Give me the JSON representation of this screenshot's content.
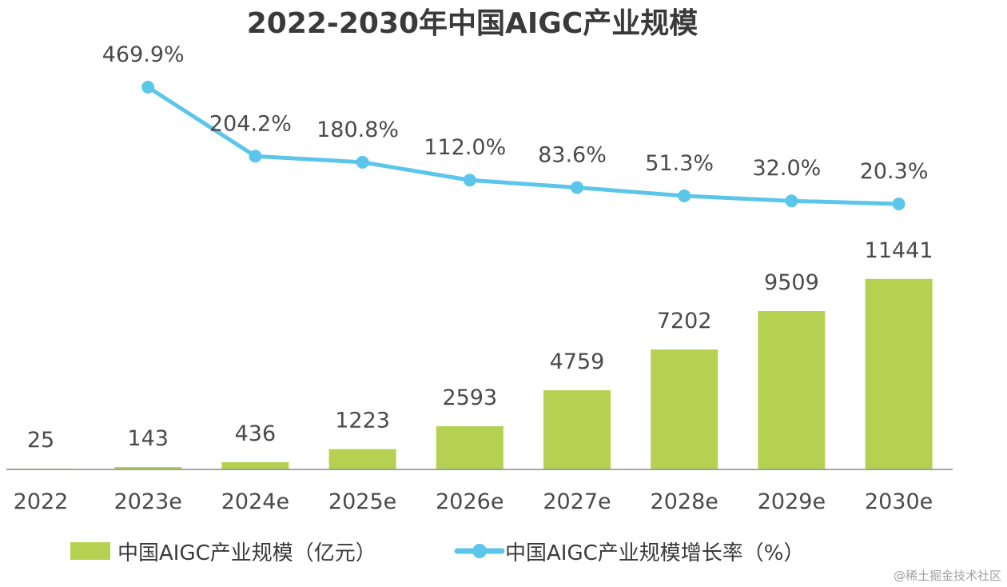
{
  "chart_data": {
    "type": "bar",
    "title": "2022-2030年中国AIGC产业规模",
    "categories": [
      "2022",
      "2023e",
      "2024e",
      "2025e",
      "2026e",
      "2027e",
      "2028e",
      "2029e",
      "2030e"
    ],
    "series": [
      {
        "name": "中国AIGC产业规模（亿元）",
        "kind": "bar",
        "values": [
          25,
          143,
          436,
          1223,
          2593,
          4759,
          7202,
          9509,
          11441
        ],
        "labels": [
          "25",
          "143",
          "436",
          "1223",
          "2593",
          "4759",
          "7202",
          "9509",
          "11441"
        ],
        "color": "#b6d152"
      },
      {
        "name": "中国AIGC产业规模增长率（%）",
        "kind": "line",
        "x": [
          "2023e",
          "2024e",
          "2025e",
          "2026e",
          "2027e",
          "2028e",
          "2029e",
          "2030e"
        ],
        "values": [
          469.9,
          204.2,
          180.8,
          112.0,
          83.6,
          51.3,
          32.0,
          20.3
        ],
        "labels": [
          "469.9%",
          "204.2%",
          "180.8%",
          "112.0%",
          "83.6%",
          "51.3%",
          "32.0%",
          "20.3%"
        ],
        "color": "#5bc6ea"
      }
    ],
    "legend_position": "bottom",
    "grid": false
  },
  "watermark": "@稀土掘金技术社区"
}
